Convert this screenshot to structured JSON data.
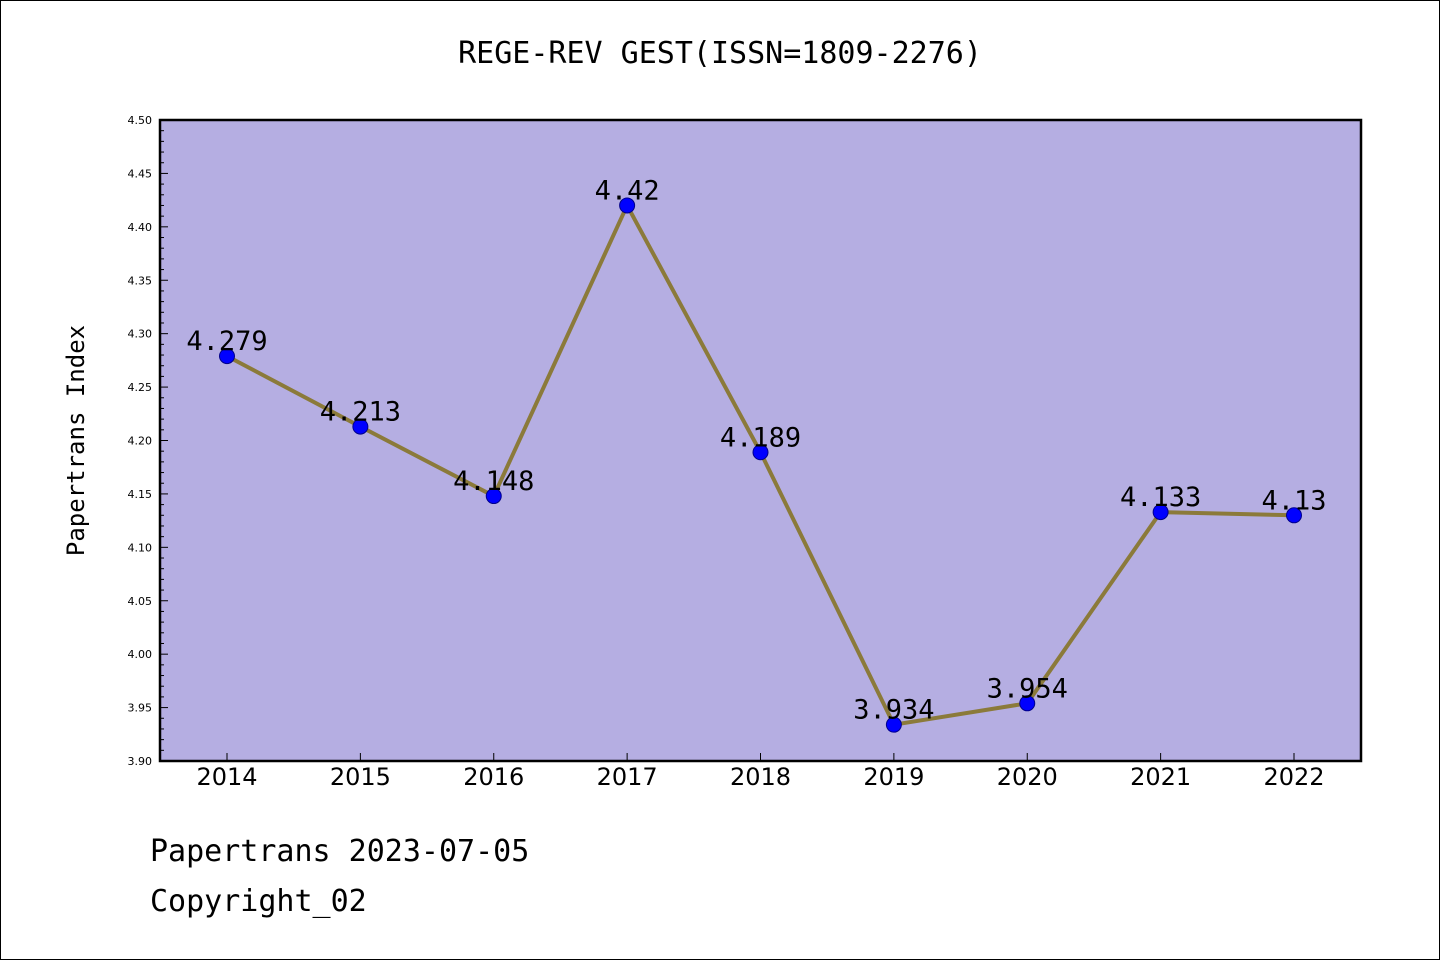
{
  "footer": {
    "line1": "Papertrans 2023-07-05",
    "line2": "Copyright_02"
  },
  "colors": {
    "plot_background": "#b5aee2",
    "line": "#8b7a3a",
    "marker": "#0000ff",
    "marker_edge": "#00008b"
  },
  "chart_data": {
    "type": "line",
    "title": "REGE-REV GEST(ISSN=1809-2276)",
    "xlabel": "",
    "ylabel": "Papertrans Index",
    "x": [
      "2014",
      "2015",
      "2016",
      "2017",
      "2018",
      "2019",
      "2020",
      "2021",
      "2022"
    ],
    "series": [
      {
        "values": [
          4.279,
          4.213,
          4.148,
          4.42,
          4.189,
          3.934,
          3.954,
          4.133,
          4.13
        ],
        "labels": [
          "4.279",
          "4.213",
          "4.148",
          "4.42",
          "4.189",
          "3.934",
          "3.954",
          "4.133",
          "4.13"
        ]
      }
    ],
    "ylim": [
      3.9,
      4.5
    ],
    "yticks": [
      "3.90",
      "3.95",
      "4.00",
      "4.05",
      "4.10",
      "4.15",
      "4.20",
      "4.25",
      "4.30",
      "4.35",
      "4.40",
      "4.45",
      "4.50"
    ],
    "grid": false,
    "legend": "none"
  }
}
